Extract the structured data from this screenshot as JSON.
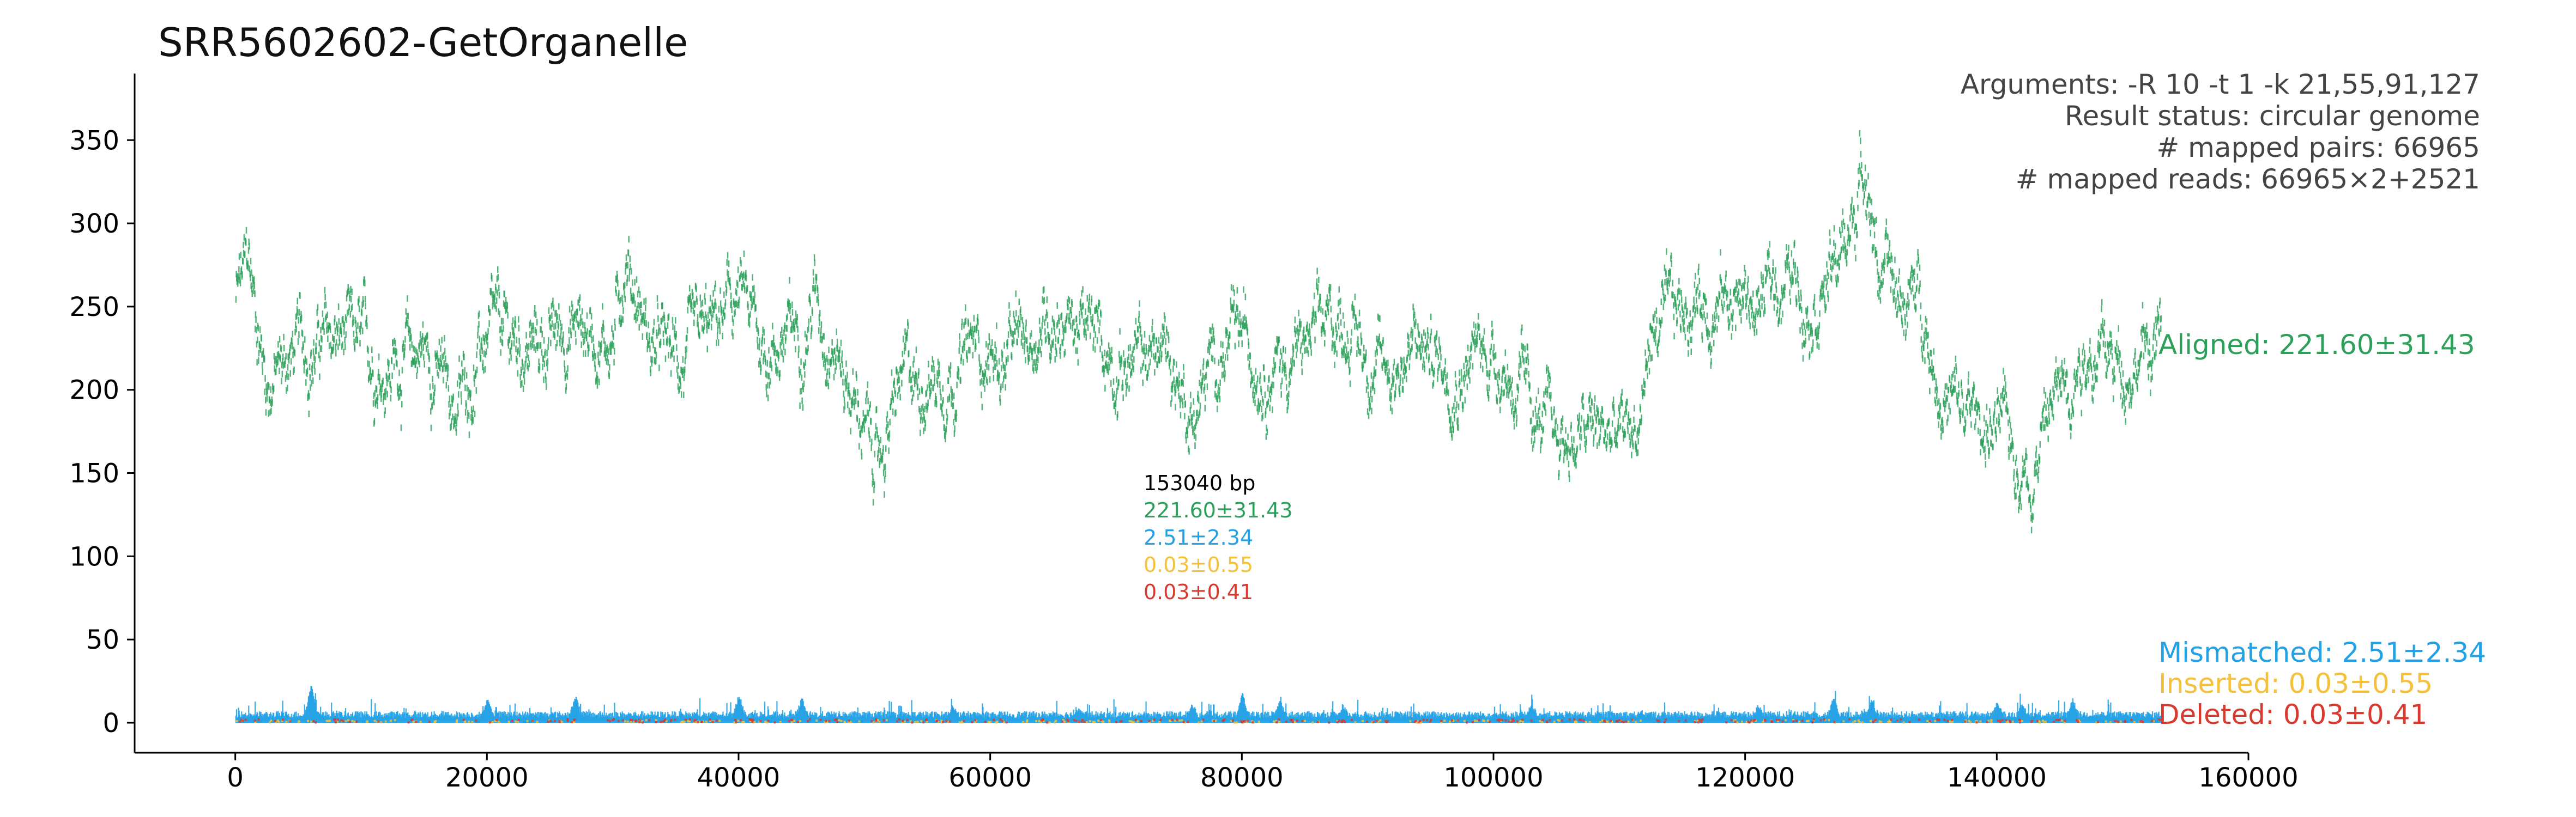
{
  "chart_data": {
    "type": "scatter",
    "title": "SRR5602602-GetOrganelle",
    "xlabel": "",
    "ylabel": "",
    "xlim": [
      -8000,
      160000
    ],
    "ylim": [
      -18,
      390
    ],
    "xticks": [
      0,
      20000,
      40000,
      60000,
      80000,
      100000,
      120000,
      140000,
      160000
    ],
    "yticks": [
      0,
      50,
      100,
      150,
      200,
      250,
      300,
      350
    ],
    "x_range": [
      0,
      153040
    ],
    "info": [
      "Arguments: -R 10 -t 1 -k 21,55,91,127",
      "Result status: circular genome",
      "# mapped pairs: 66965",
      "# mapped reads: 66965×2+2521"
    ],
    "length_label": "153040 bp",
    "series": [
      {
        "name": "Aligned",
        "label": "Aligned: 221.60±31.43",
        "stat": "221.60±31.43",
        "color": "#2ca05a",
        "profile": [
          [
            0,
            255
          ],
          [
            1000,
            275
          ],
          [
            2500,
            205
          ],
          [
            5000,
            225
          ],
          [
            8000,
            230
          ],
          [
            12000,
            215
          ],
          [
            15000,
            225
          ],
          [
            17500,
            190
          ],
          [
            20000,
            230
          ],
          [
            24000,
            225
          ],
          [
            27000,
            240
          ],
          [
            30000,
            230
          ],
          [
            31000,
            285
          ],
          [
            33000,
            225
          ],
          [
            36000,
            215
          ],
          [
            40000,
            255
          ],
          [
            42000,
            225
          ],
          [
            45000,
            235
          ],
          [
            46000,
            260
          ],
          [
            48000,
            220
          ],
          [
            50000,
            175
          ],
          [
            51000,
            155
          ],
          [
            53000,
            205
          ],
          [
            56000,
            210
          ],
          [
            59000,
            225
          ],
          [
            61000,
            215
          ],
          [
            63000,
            230
          ],
          [
            65000,
            250
          ],
          [
            68000,
            230
          ],
          [
            71000,
            215
          ],
          [
            74000,
            225
          ],
          [
            76000,
            185
          ],
          [
            78000,
            220
          ],
          [
            80000,
            230
          ],
          [
            83000,
            215
          ],
          [
            86000,
            230
          ],
          [
            88000,
            245
          ],
          [
            91000,
            210
          ],
          [
            94000,
            225
          ],
          [
            97000,
            215
          ],
          [
            100000,
            225
          ],
          [
            102000,
            200
          ],
          [
            104000,
            175
          ],
          [
            106000,
            170
          ],
          [
            108000,
            175
          ],
          [
            110000,
            170
          ],
          [
            111500,
            180
          ],
          [
            112500,
            235
          ],
          [
            114000,
            240
          ],
          [
            116000,
            255
          ],
          [
            119000,
            255
          ],
          [
            121000,
            250
          ],
          [
            123000,
            270
          ],
          [
            125000,
            260
          ],
          [
            127000,
            270
          ],
          [
            128500,
            300
          ],
          [
            129500,
            345
          ],
          [
            130500,
            275
          ],
          [
            132000,
            255
          ],
          [
            134000,
            255
          ],
          [
            135500,
            200
          ],
          [
            137000,
            185
          ],
          [
            139000,
            180
          ],
          [
            141000,
            170
          ],
          [
            142500,
            150
          ],
          [
            144000,
            185
          ],
          [
            145500,
            210
          ],
          [
            147000,
            230
          ],
          [
            149000,
            215
          ],
          [
            151000,
            220
          ],
          [
            153040,
            230
          ]
        ],
        "noise": 20
      },
      {
        "name": "Mismatched",
        "label": "Mismatched: 2.51±2.34",
        "stat": "2.51±2.34",
        "color": "#22a1e6",
        "peaks": [
          [
            6000,
            22
          ],
          [
            20000,
            12
          ],
          [
            27000,
            14
          ],
          [
            40000,
            15
          ],
          [
            45000,
            13
          ],
          [
            57000,
            9
          ],
          [
            67000,
            8
          ],
          [
            76000,
            10
          ],
          [
            80000,
            16
          ],
          [
            83000,
            11
          ],
          [
            88000,
            9
          ],
          [
            103000,
            10
          ],
          [
            121000,
            9
          ],
          [
            127000,
            14
          ],
          [
            130000,
            12
          ],
          [
            140000,
            11
          ],
          [
            142000,
            10
          ],
          [
            146000,
            12
          ]
        ],
        "base": 3
      },
      {
        "name": "Inserted",
        "label": "Inserted: 0.03±0.55",
        "stat": "0.03±0.55",
        "color": "#f5c13a",
        "base": 0.1
      },
      {
        "name": "Deleted",
        "label": "Deleted: 0.03±0.41",
        "stat": "0.03±0.41",
        "color": "#d83a2f",
        "base": 0.1
      }
    ]
  }
}
